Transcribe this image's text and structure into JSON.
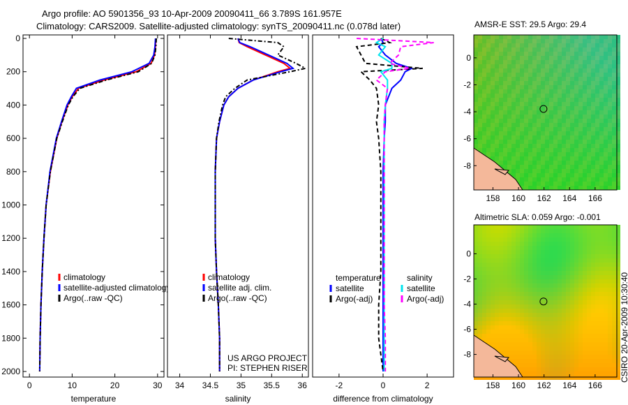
{
  "title_line1": "Argo profile: AO 5901356_93 10-Apr-2009 20090411_66 3.789S 161.957E",
  "title_line2": "Climatology: CARS2009. Satellite-adjusted climatology: synTS_20090411.nc (0.078d later)",
  "footer_credit": "CSIRO 20-Apr-2009 10:30:40",
  "project_line1": "US ARGO PROJECT",
  "project_line2": "PI: STEPHEN RISER",
  "colors": {
    "clim": "#ff0000",
    "sat": "#0000ff",
    "argo": "#000000",
    "sal_sat": "#00e5ee",
    "sal_argo": "#ff00ff"
  },
  "chart_data": [
    {
      "type": "line",
      "name": "temperature-panel",
      "xlabel": "temperature",
      "xlim": [
        -1.5,
        31.5
      ],
      "ylim": [
        0,
        2050
      ],
      "xticks": [
        0,
        10,
        20,
        30
      ],
      "yticks": [
        0,
        200,
        400,
        600,
        800,
        1000,
        1200,
        1400,
        1600,
        1800,
        2000
      ],
      "legend": [
        "climatology",
        "satellite-adjusted climatology",
        "Argo(..raw -QC)"
      ],
      "depth": [
        0,
        50,
        100,
        150,
        200,
        250,
        300,
        350,
        400,
        500,
        600,
        800,
        1000,
        1200,
        1400,
        1600,
        1800,
        2000
      ],
      "series": [
        {
          "name": "climatology",
          "color": "#ff0000",
          "dash": "",
          "values": [
            29.6,
            29.5,
            29.3,
            28.5,
            25.0,
            17.5,
            11.5,
            10.0,
            9.0,
            7.6,
            6.4,
            4.9,
            3.9,
            3.4,
            3.0,
            2.7,
            2.5,
            2.4
          ]
        },
        {
          "name": "satellite-adjusted climatology",
          "color": "#0000ff",
          "dash": "",
          "values": [
            29.5,
            29.4,
            29.1,
            28.0,
            24.0,
            16.5,
            11.0,
            9.8,
            8.8,
            7.5,
            6.3,
            4.8,
            3.9,
            3.4,
            3.0,
            2.7,
            2.5,
            2.4
          ]
        },
        {
          "name": "Argo(..raw -QC)",
          "color": "#000000",
          "dash": "6,3,2,3",
          "values": [
            29.7,
            29.6,
            29.4,
            28.6,
            25.5,
            18.0,
            11.8,
            10.2,
            9.1,
            7.7,
            6.4,
            4.9,
            3.9,
            3.4,
            3.0,
            2.7,
            2.5,
            2.4
          ]
        }
      ]
    },
    {
      "type": "line",
      "name": "salinity-panel",
      "xlabel": "salinity",
      "xlim": [
        33.8,
        36.1
      ],
      "ylim": [
        0,
        2050
      ],
      "xticks": [
        34,
        34.5,
        35,
        35.5,
        36
      ],
      "yticks": [],
      "legend": [
        "climatology",
        "satellite adj. clim.",
        "Argo(..raw -QC)"
      ],
      "depth": [
        0,
        25,
        50,
        100,
        150,
        180,
        200,
        250,
        300,
        350,
        400,
        500,
        600,
        800,
        1000,
        1200,
        1400,
        1600,
        1800,
        2000
      ],
      "series": [
        {
          "name": "climatology",
          "color": "#ff0000",
          "dash": "",
          "values": [
            34.95,
            34.97,
            35.1,
            35.4,
            35.7,
            35.8,
            35.6,
            35.2,
            34.95,
            34.8,
            34.72,
            34.65,
            34.6,
            34.58,
            34.58,
            34.58,
            34.6,
            34.63,
            34.65,
            34.65
          ]
        },
        {
          "name": "satellite adj. clim.",
          "color": "#0000ff",
          "dash": "",
          "values": [
            34.95,
            34.98,
            35.15,
            35.45,
            35.75,
            35.85,
            35.65,
            35.2,
            34.95,
            34.8,
            34.72,
            34.65,
            34.6,
            34.58,
            34.58,
            34.58,
            34.6,
            34.63,
            34.65,
            34.65
          ]
        },
        {
          "name": "Argo(..raw -QC)",
          "color": "#000000",
          "dash": "6,3,2,3",
          "values": [
            34.8,
            35.6,
            35.7,
            35.6,
            35.9,
            36.05,
            35.8,
            35.1,
            34.9,
            34.75,
            34.7,
            34.64,
            34.6,
            34.58,
            34.58,
            34.58,
            34.6,
            34.63,
            34.65,
            34.65
          ]
        }
      ]
    },
    {
      "type": "line",
      "name": "difference-panel",
      "xlabel": "difference from climatology",
      "xlim": [
        -3.2,
        3.2
      ],
      "ylim": [
        0,
        2050
      ],
      "xticks": [
        -2,
        0,
        2
      ],
      "yticks": [],
      "legend_headers": [
        "temperature",
        "salinity"
      ],
      "legend": [
        "satellite",
        "Argo(-adj)",
        "satellite",
        "Argo(-adj)"
      ],
      "depth": [
        0,
        25,
        50,
        100,
        150,
        180,
        200,
        250,
        300,
        400,
        500,
        600,
        800,
        1000,
        1400,
        1600,
        1800,
        2000
      ],
      "series": [
        {
          "name": "temperature satellite",
          "color": "#0000ff",
          "dash": "",
          "values": [
            -0.1,
            0,
            -0.2,
            0.1,
            0.6,
            1.3,
            1.0,
            0.8,
            0.4,
            0.1,
            0.1,
            0.05,
            0,
            0,
            0,
            0,
            0,
            0
          ]
        },
        {
          "name": "temperature Argo(-adj)",
          "color": "#000000",
          "dash": "6,4",
          "values": [
            -0.1,
            0.3,
            -1.2,
            -1.0,
            -0.8,
            1.8,
            -1.0,
            -0.6,
            -0.3,
            -0.2,
            -0.3,
            -0.2,
            -0.1,
            -0.1,
            -0.1,
            -0.2,
            -0.2,
            0
          ]
        },
        {
          "name": "salinity satellite",
          "color": "#00e5ee",
          "dash": "",
          "values": [
            0,
            -0.3,
            0.1,
            -0.2,
            0.4,
            0.4,
            -0.1,
            0.2,
            0.2,
            0.1,
            0.05,
            0.05,
            0.05,
            0.05,
            0.05,
            0.05,
            0.05,
            0.05
          ]
        },
        {
          "name": "salinity Argo(-adj)",
          "color": "#ff00ff",
          "dash": "6,4",
          "values": [
            -1.2,
            2.3,
            0.8,
            0.7,
            0.3,
            1.2,
            0.1,
            -0.3,
            0.2,
            0.1,
            0.05,
            0.05,
            0.05,
            0.05,
            0.05,
            0.05,
            0.1,
            0.1
          ]
        }
      ]
    },
    {
      "type": "heatmap",
      "name": "sst-map",
      "title": "AMSR-E SST: 29.5 Argo: 29.4",
      "xlim": [
        156.5,
        167.7
      ],
      "ylim": [
        -9.8,
        1.7
      ],
      "xticks": [
        158,
        160,
        162,
        164,
        166
      ],
      "yticks": [
        0,
        -2,
        -4,
        -6,
        -8
      ],
      "marker": [
        161.957,
        -3.789
      ]
    },
    {
      "type": "heatmap",
      "name": "sla-map",
      "title": "Altimetric SLA: 0.059 Argo: -0.001",
      "xlim": [
        156.5,
        167.7
      ],
      "ylim": [
        -9.8,
        2.3
      ],
      "xticks": [
        158,
        160,
        162,
        164,
        166
      ],
      "yticks": [
        0,
        -2,
        -4,
        -6,
        -8
      ],
      "marker": [
        161.957,
        -3.789
      ]
    }
  ]
}
